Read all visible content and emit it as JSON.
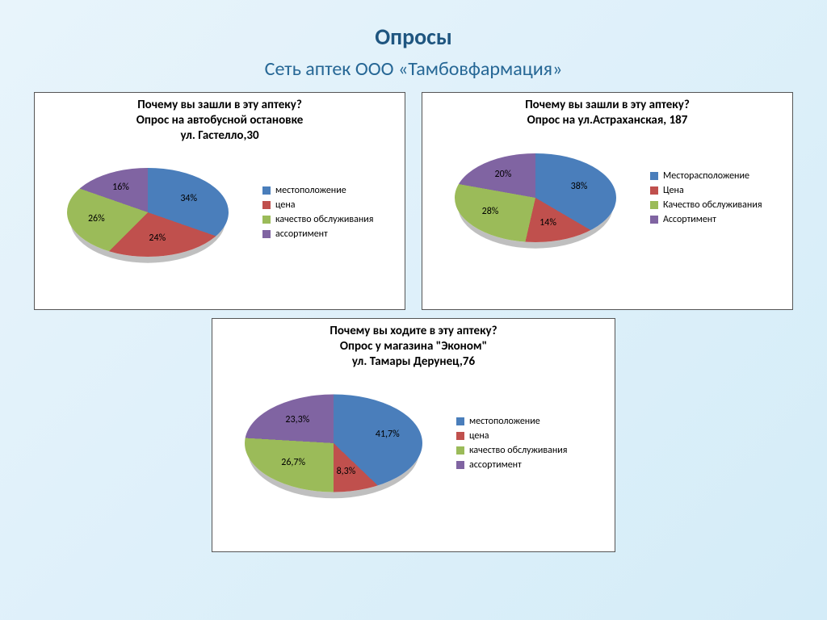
{
  "page": {
    "main_title": "Опросы",
    "subtitle": "Сеть аптек ООО «Тамбовфармация»"
  },
  "colors": {
    "c0": "#4a7ebb",
    "c1": "#c0504d",
    "c2": "#9bbb59",
    "c3": "#8064a2"
  },
  "chart1": {
    "type": "pie",
    "title_l1": "Почему вы зашли в эту аптеку?",
    "title_l2": "Опрос на автобусной остановке",
    "title_l3": "ул. Гастелло,30",
    "pie_diameter": 200,
    "legend": [
      "местоположение",
      "цена",
      "качество обслуживания",
      "ассортимент"
    ],
    "slices": [
      {
        "label": "34%",
        "value": 34,
        "color": "#4a7ebb"
      },
      {
        "label": "24%",
        "value": 24,
        "color": "#c0504d"
      },
      {
        "label": "26%",
        "value": 26,
        "color": "#9bbb59"
      },
      {
        "label": "16%",
        "value": 16,
        "color": "#8064a2"
      }
    ]
  },
  "chart2": {
    "type": "pie",
    "title_l1": "Почему вы зашли в эту аптеку?",
    "title_l2": "Опрос на ул.Астраханская, 187",
    "pie_diameter": 200,
    "legend": [
      "Месторасположение",
      "Цена",
      "Качество обслуживания",
      "Ассортимент"
    ],
    "slices": [
      {
        "label": "38%",
        "value": 38,
        "color": "#4a7ebb"
      },
      {
        "label": "14%",
        "value": 14,
        "color": "#c0504d"
      },
      {
        "label": "28%",
        "value": 28,
        "color": "#9bbb59"
      },
      {
        "label": "20%",
        "value": 20,
        "color": "#8064a2"
      }
    ]
  },
  "chart3": {
    "type": "pie",
    "title_l1": "Почему вы ходите в эту аптеку?",
    "title_l2": "Опрос у магазина \"Эконом\"",
    "title_l3": "ул. Тамары Дерунец,76",
    "pie_diameter": 220,
    "legend": [
      "местоположение",
      "цена",
      "качество обслуживания",
      "ассортимент"
    ],
    "slices": [
      {
        "label": "41,7%",
        "value": 41.7,
        "color": "#4a7ebb"
      },
      {
        "label": "8,3%",
        "value": 8.3,
        "color": "#c0504d"
      },
      {
        "label": "26,7%",
        "value": 26.7,
        "color": "#9bbb59"
      },
      {
        "label": "23,3%",
        "value": 23.3,
        "color": "#8064a2"
      }
    ]
  }
}
